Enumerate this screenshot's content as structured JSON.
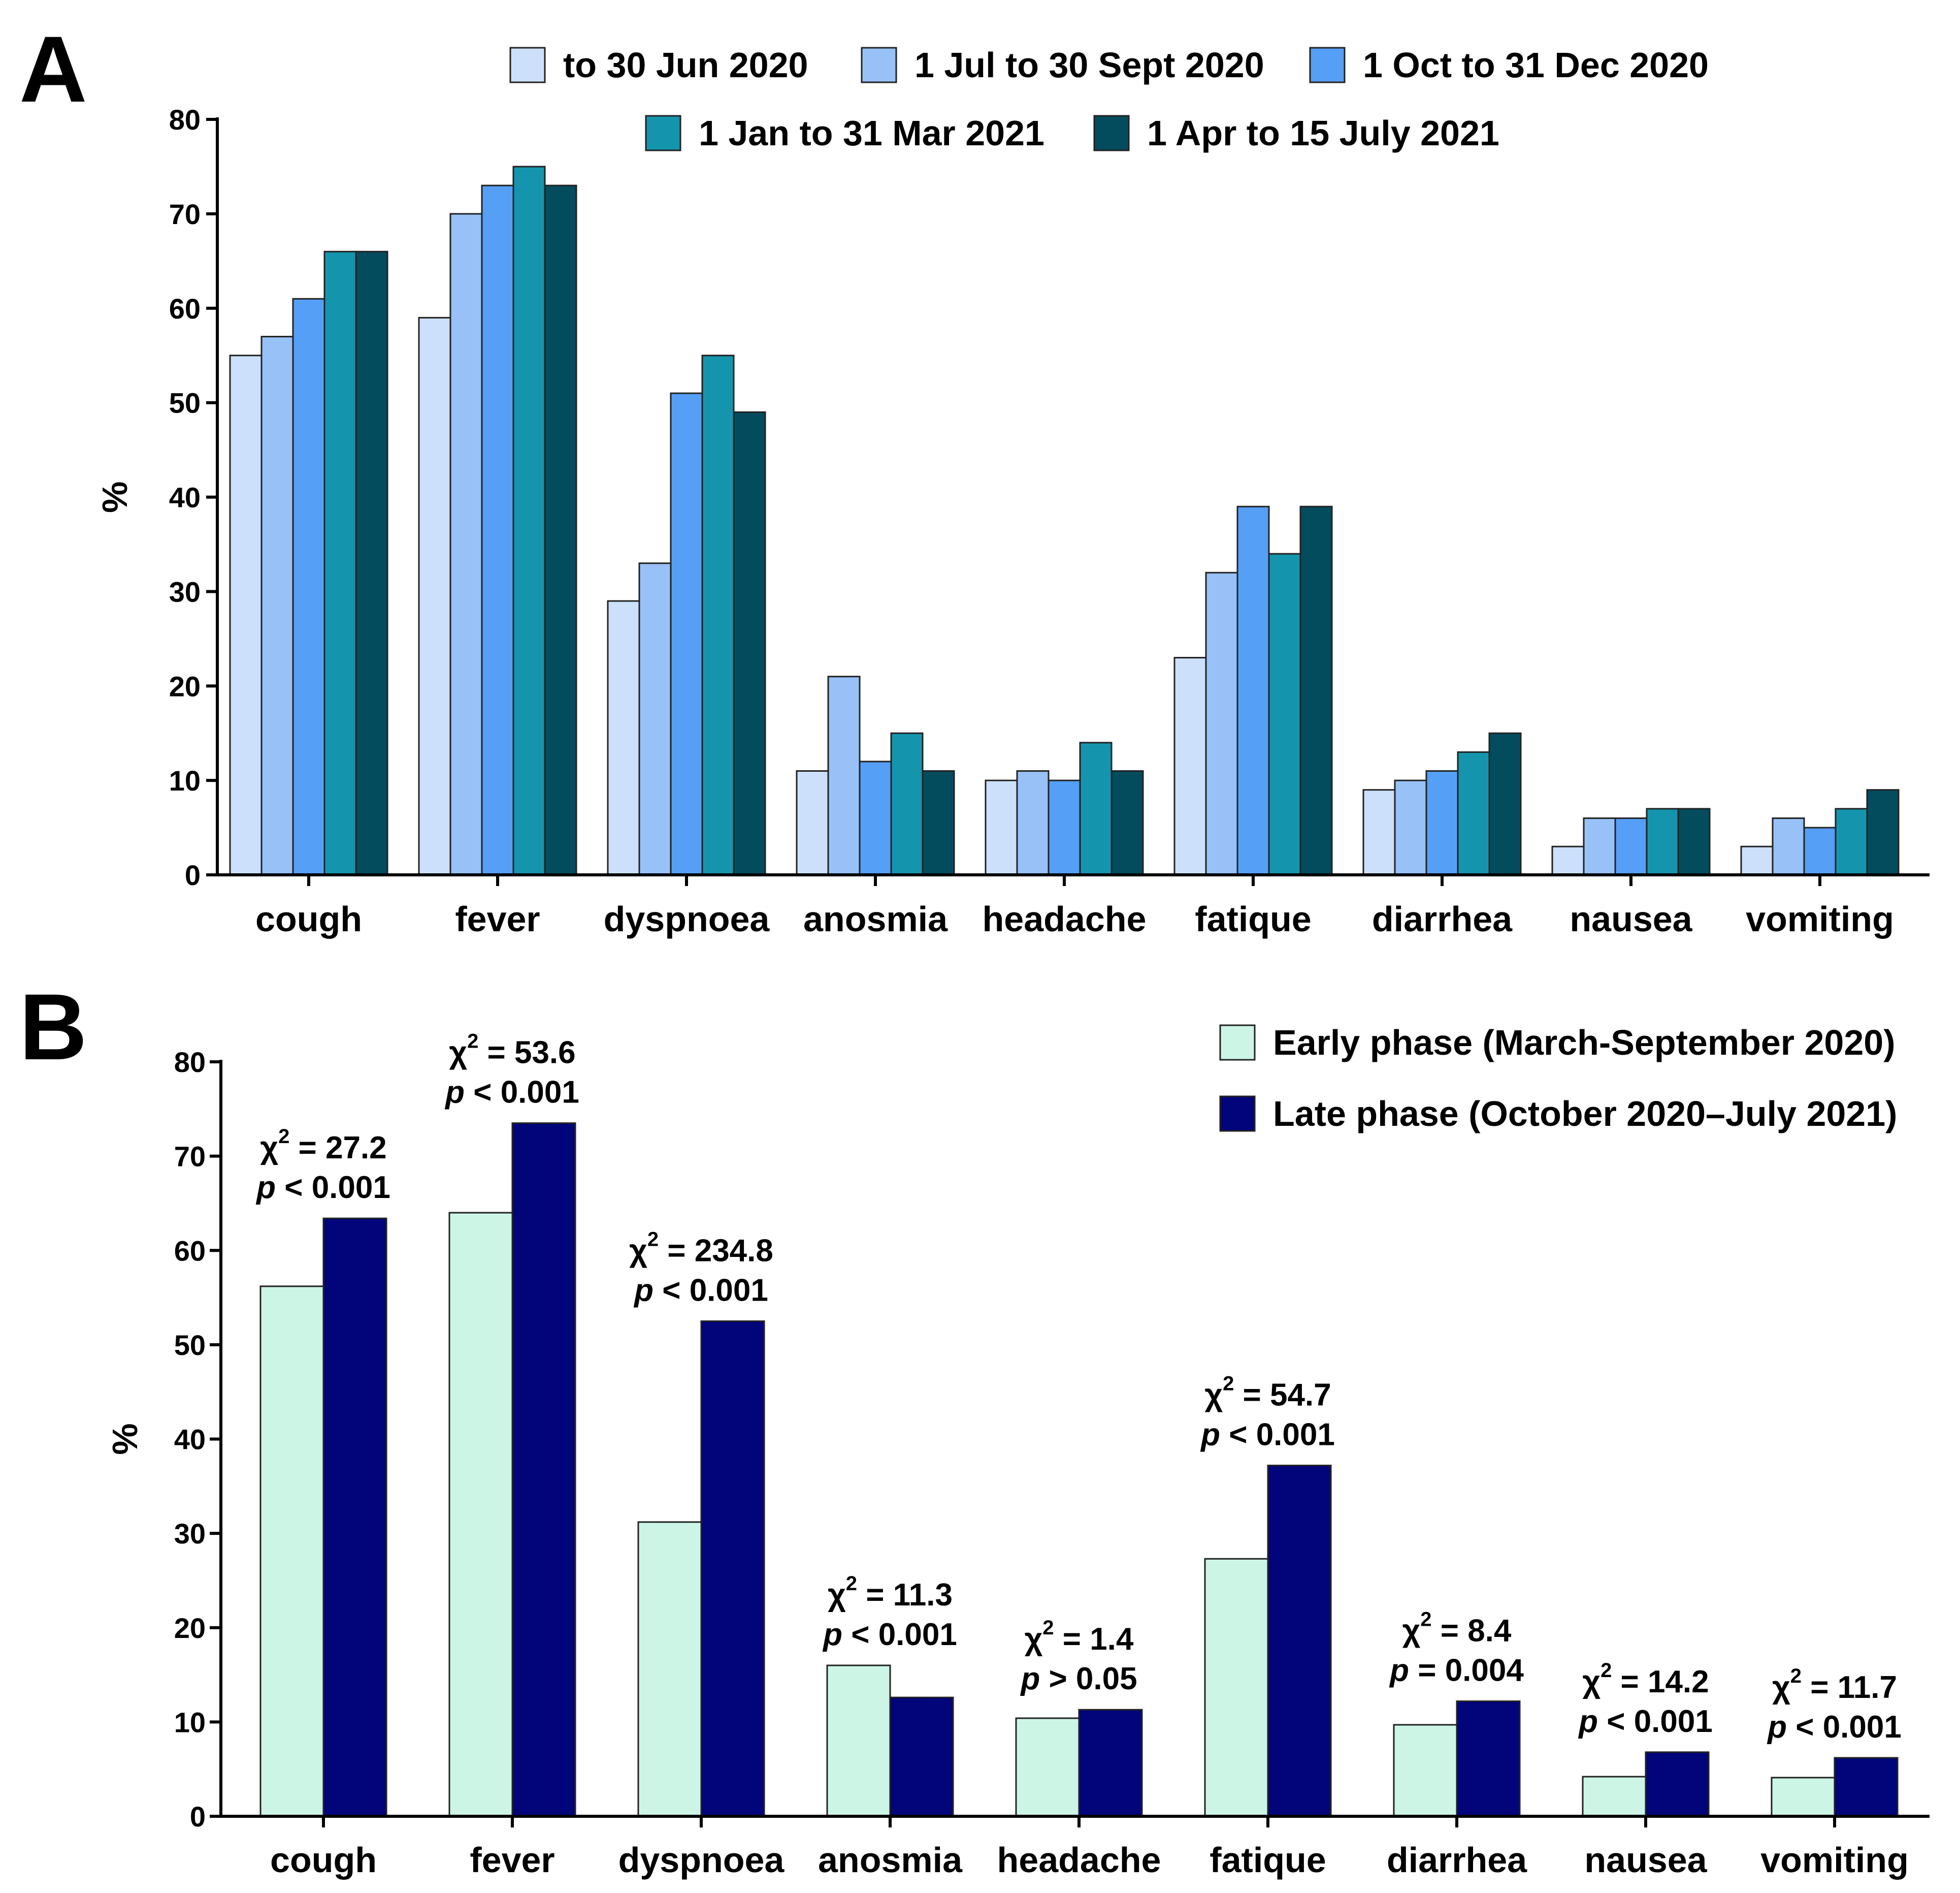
{
  "panels": {
    "a": {
      "letter": "A"
    },
    "b": {
      "letter": "B"
    }
  },
  "chart_data": [
    {
      "id": "A",
      "type": "bar",
      "title": "",
      "xlabel": "",
      "ylabel": "%",
      "ylim": [
        0,
        80
      ],
      "yticks": [
        0,
        10,
        20,
        30,
        40,
        50,
        60,
        70,
        80
      ],
      "grid": false,
      "legend_position": "top",
      "categories": [
        "cough",
        "fever",
        "dyspnoea",
        "anosmia",
        "headache",
        "fatique",
        "diarrhea",
        "nausea",
        "vomiting"
      ],
      "series": [
        {
          "name": "to 30 Jun 2020",
          "color": "#CCE0FB",
          "values": [
            55,
            59,
            29,
            11,
            10,
            23,
            9,
            3,
            3
          ]
        },
        {
          "name": "1 Jul to 30 Sept 2020",
          "color": "#97C1F7",
          "values": [
            57,
            70,
            33,
            21,
            11,
            32,
            10,
            6,
            6
          ]
        },
        {
          "name": "1 Oct to 31 Dec 2020",
          "color": "#559FF6",
          "values": [
            61,
            73,
            51,
            12,
            10,
            39,
            11,
            6,
            5
          ]
        },
        {
          "name": "1 Jan to 31 Mar 2021",
          "color": "#1495AD",
          "values": [
            66,
            75,
            55,
            15,
            14,
            34,
            13,
            7,
            7
          ]
        },
        {
          "name": "1 Apr to 15 July 2021",
          "color": "#034C5E",
          "values": [
            66,
            73,
            49,
            11,
            11,
            39,
            15,
            7,
            9
          ]
        }
      ]
    },
    {
      "id": "B",
      "type": "bar",
      "title": "",
      "xlabel": "",
      "ylabel": "%",
      "ylim": [
        0,
        80
      ],
      "yticks": [
        0,
        10,
        20,
        30,
        40,
        50,
        60,
        70,
        80
      ],
      "grid": false,
      "legend_position": "top-right",
      "categories": [
        "cough",
        "fever",
        "dyspnoea",
        "anosmia",
        "headache",
        "fatique",
        "diarrhea",
        "nausea",
        "vomiting"
      ],
      "series": [
        {
          "name": "Early phase (March-September 2020)",
          "color": "#CCF5E6",
          "values": [
            56.2,
            64.0,
            31.2,
            16.0,
            10.4,
            27.3,
            9.7,
            4.2,
            4.1
          ]
        },
        {
          "name": "Late phase (October 2020–July 2021)",
          "color": "#02047A",
          "values": [
            63.4,
            73.5,
            52.5,
            12.6,
            11.3,
            37.2,
            12.2,
            6.8,
            6.2
          ]
        }
      ],
      "annotations": [
        {
          "category": "cough",
          "chi_symbol": "χ",
          "chi_exp": "2",
          "chi_value": "= 27.2",
          "p_symbol": "p",
          "p_value": "< 0.001"
        },
        {
          "category": "fever",
          "chi_symbol": "χ",
          "chi_exp": "2",
          "chi_value": "= 53.6",
          "p_symbol": "p",
          "p_value": "< 0.001"
        },
        {
          "category": "dyspnoea",
          "chi_symbol": "χ",
          "chi_exp": "2",
          "chi_value": "= 234.8",
          "p_symbol": "p",
          "p_value": "< 0.001"
        },
        {
          "category": "anosmia",
          "chi_symbol": "χ",
          "chi_exp": "2",
          "chi_value": "= 11.3",
          "p_symbol": "p",
          "p_value": "< 0.001"
        },
        {
          "category": "headache",
          "chi_symbol": "χ",
          "chi_exp": "2",
          "chi_value": "= 1.4",
          "p_symbol": "p",
          "p_value": "> 0.05"
        },
        {
          "category": "fatique",
          "chi_symbol": "χ",
          "chi_exp": "2",
          "chi_value": "= 54.7",
          "p_symbol": "p",
          "p_value": "< 0.001"
        },
        {
          "category": "diarrhea",
          "chi_symbol": "χ",
          "chi_exp": "2",
          "chi_value": "= 8.4",
          "p_symbol": "p",
          "p_value": "= 0.004"
        },
        {
          "category": "nausea",
          "chi_symbol": "χ",
          "chi_exp": "2",
          "chi_value": "= 14.2",
          "p_symbol": "p",
          "p_value": "< 0.001"
        },
        {
          "category": "vomiting",
          "chi_symbol": "χ",
          "chi_exp": "2",
          "chi_value": "= 11.7",
          "p_symbol": "p",
          "p_value": "< 0.001"
        }
      ]
    }
  ]
}
